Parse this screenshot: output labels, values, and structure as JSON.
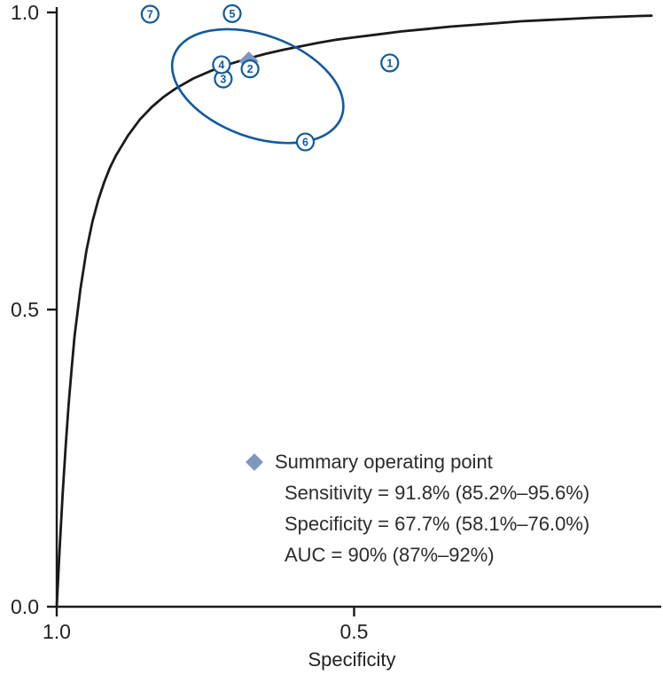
{
  "chart_data": {
    "type": "scatter",
    "title": "",
    "xlabel": "Specificity",
    "ylabel": "",
    "x_axis": {
      "label": "Specificity",
      "range": [
        1.0,
        0.0
      ],
      "reversed": true,
      "ticks": [
        {
          "value": 1.0,
          "label": "1.0"
        },
        {
          "value": 0.5,
          "label": "0.5"
        }
      ]
    },
    "y_axis": {
      "label": "",
      "range": [
        0.0,
        1.0
      ],
      "ticks": [
        {
          "value": 1.0,
          "label": "1.0"
        },
        {
          "value": 0.5,
          "label": "0.5"
        },
        {
          "value": 0.0,
          "label": "0.0"
        }
      ]
    },
    "studies": [
      {
        "id": "1",
        "specificity": 0.44,
        "sensitivity": 0.915
      },
      {
        "id": "2",
        "specificity": 0.675,
        "sensitivity": 0.905
      },
      {
        "id": "3",
        "specificity": 0.72,
        "sensitivity": 0.888
      },
      {
        "id": "4",
        "specificity": 0.723,
        "sensitivity": 0.912
      },
      {
        "id": "5",
        "specificity": 0.705,
        "sensitivity": 0.998
      },
      {
        "id": "6",
        "specificity": 0.582,
        "sensitivity": 0.782
      },
      {
        "id": "7",
        "specificity": 0.843,
        "sensitivity": 0.997
      }
    ],
    "summary_point": {
      "specificity": 0.677,
      "sensitivity": 0.918
    },
    "confidence_ellipse": {
      "center_specificity": 0.662,
      "center_sensitivity": 0.876,
      "rx": 0.15,
      "ry": 0.086,
      "rotation_deg": 20
    },
    "roc_curve": [
      [
        1.0,
        0.0
      ],
      [
        0.995,
        0.1
      ],
      [
        0.99,
        0.19
      ],
      [
        0.985,
        0.27
      ],
      [
        0.98,
        0.34
      ],
      [
        0.975,
        0.4
      ],
      [
        0.97,
        0.455
      ],
      [
        0.96,
        0.535
      ],
      [
        0.95,
        0.6
      ],
      [
        0.94,
        0.648
      ],
      [
        0.93,
        0.685
      ],
      [
        0.92,
        0.715
      ],
      [
        0.91,
        0.74
      ],
      [
        0.9,
        0.76
      ],
      [
        0.88,
        0.793
      ],
      [
        0.86,
        0.82
      ],
      [
        0.84,
        0.841
      ],
      [
        0.82,
        0.858
      ],
      [
        0.8,
        0.872
      ],
      [
        0.77,
        0.889
      ],
      [
        0.74,
        0.902
      ],
      [
        0.71,
        0.913
      ],
      [
        0.68,
        0.922
      ],
      [
        0.65,
        0.93
      ],
      [
        0.62,
        0.937
      ],
      [
        0.59,
        0.943
      ],
      [
        0.56,
        0.949
      ],
      [
        0.53,
        0.954
      ],
      [
        0.5,
        0.958
      ],
      [
        0.46,
        0.963
      ],
      [
        0.42,
        0.968
      ],
      [
        0.38,
        0.972
      ],
      [
        0.34,
        0.976
      ],
      [
        0.3,
        0.979
      ],
      [
        0.26,
        0.982
      ],
      [
        0.22,
        0.985
      ],
      [
        0.18,
        0.987
      ],
      [
        0.14,
        0.989
      ],
      [
        0.1,
        0.991
      ],
      [
        0.06,
        0.9925
      ],
      [
        0.02,
        0.994
      ],
      [
        0.0,
        0.9945
      ]
    ],
    "auc": {
      "value": "90%",
      "ci": "87%–92%"
    },
    "colors": {
      "curve": "#1a1a1a",
      "axis": "#1a1a1a",
      "text": "#222222",
      "study_circle": "#115a9e",
      "ellipse": "#115a9e",
      "summary_diamond": "#7e97bf"
    }
  },
  "legend": {
    "title": "Summary operating point",
    "lines": [
      "Sensitivity = 91.8% (85.2%–95.6%)",
      "Specificity = 67.7% (58.1%–76.0%)",
      "AUC = 90% (87%–92%)"
    ]
  }
}
